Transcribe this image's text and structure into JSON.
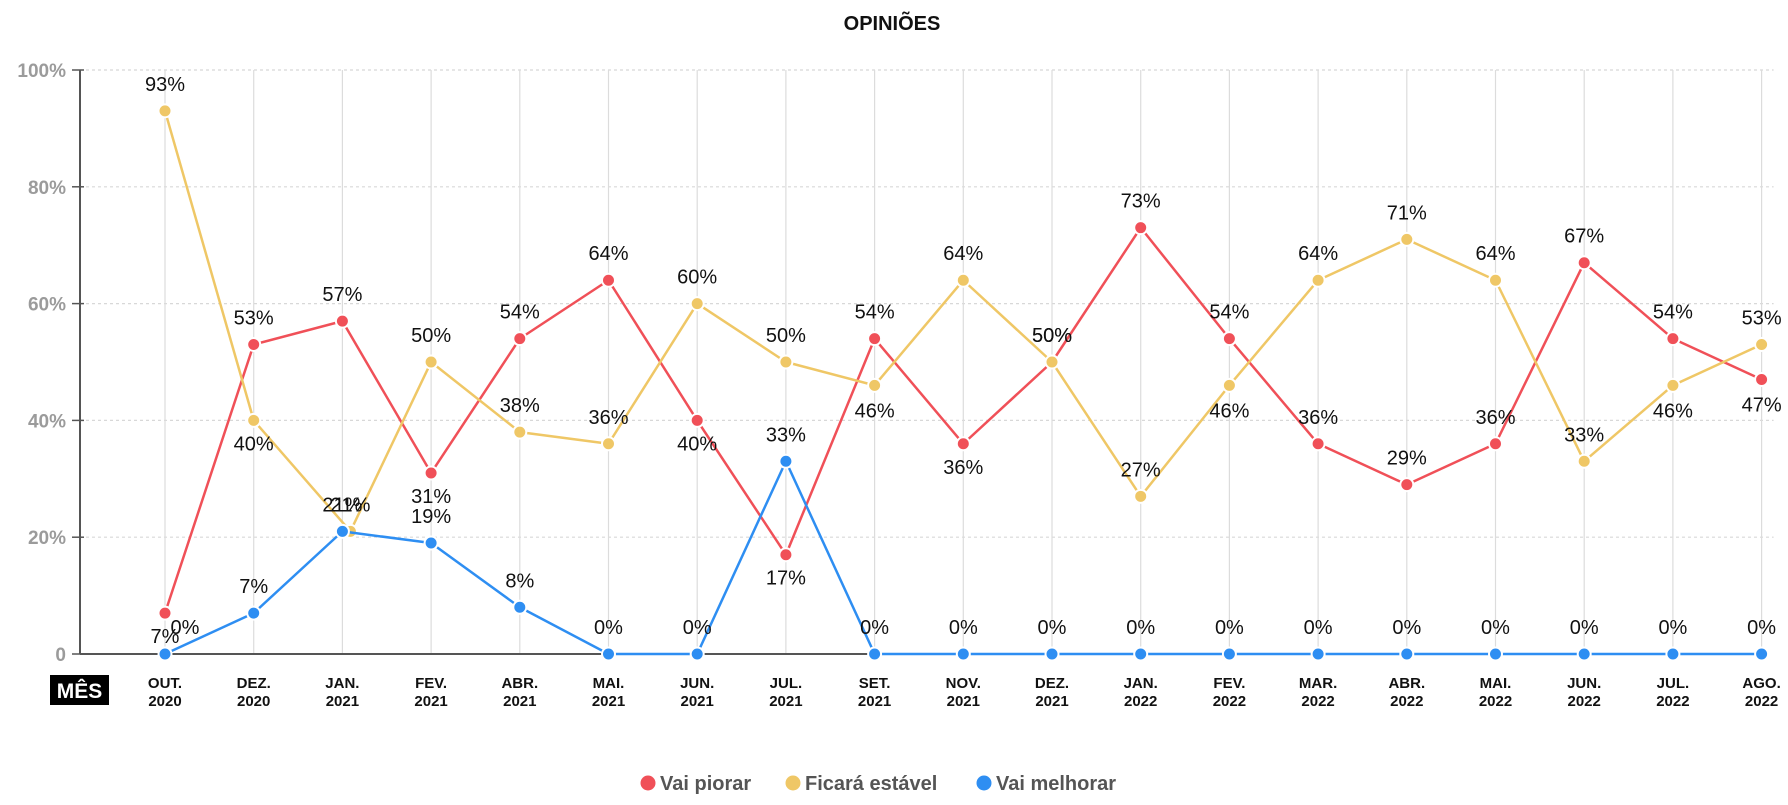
{
  "chart_data": {
    "type": "line",
    "title": "OPINIÕES",
    "xlabel": "MÊS",
    "ylabel": "",
    "ylim": [
      0,
      100
    ],
    "yticks": [
      {
        "value": 0,
        "label": "0"
      },
      {
        "value": 20,
        "label": "20%"
      },
      {
        "value": 40,
        "label": "40%"
      },
      {
        "value": 60,
        "label": "60%"
      },
      {
        "value": 80,
        "label": "80%"
      },
      {
        "value": 100,
        "label": "100%"
      }
    ],
    "categories": [
      {
        "month": "OUT.",
        "year": "2020"
      },
      {
        "month": "DEZ.",
        "year": "2020"
      },
      {
        "month": "JAN.",
        "year": "2021"
      },
      {
        "month": "FEV.",
        "year": "2021"
      },
      {
        "month": "ABR.",
        "year": "2021"
      },
      {
        "month": "MAI.",
        "year": "2021"
      },
      {
        "month": "JUN.",
        "year": "2021"
      },
      {
        "month": "JUL.",
        "year": "2021"
      },
      {
        "month": "SET.",
        "year": "2021"
      },
      {
        "month": "NOV.",
        "year": "2021"
      },
      {
        "month": "DEZ.",
        "year": "2021"
      },
      {
        "month": "JAN.",
        "year": "2022"
      },
      {
        "month": "FEV.",
        "year": "2022"
      },
      {
        "month": "MAR.",
        "year": "2022"
      },
      {
        "month": "ABR.",
        "year": "2022"
      },
      {
        "month": "MAI.",
        "year": "2022"
      },
      {
        "month": "JUN.",
        "year": "2022"
      },
      {
        "month": "JUL.",
        "year": "2022"
      },
      {
        "month": "AGO.",
        "year": "2022"
      }
    ],
    "grid": true,
    "legend_position": "bottom-center",
    "series": [
      {
        "name": "Vai piorar",
        "color": "#f05058",
        "values": [
          7,
          53,
          57,
          31,
          54,
          64,
          40,
          17,
          54,
          36,
          50,
          73,
          54,
          36,
          29,
          36,
          67,
          54,
          47
        ],
        "labels": [
          "7%",
          "53%",
          "57%",
          "31%",
          "54%",
          "64%",
          "40%",
          "17%",
          "54%",
          "36%",
          "50%",
          "73%",
          "54%",
          "36%",
          "29%",
          "36%",
          "67%",
          "54%",
          "47%"
        ]
      },
      {
        "name": "Ficará estável",
        "color": "#efc766",
        "values": [
          93,
          40,
          21,
          50,
          38,
          36,
          60,
          50,
          46,
          64,
          50,
          27,
          46,
          64,
          71,
          64,
          33,
          46,
          53
        ],
        "labels": [
          "93%",
          "40%",
          "21%",
          "50%",
          "38%",
          "36%",
          "60%",
          "50%",
          "46%",
          "64%",
          "50%",
          "27%",
          "46%",
          "64%",
          "71%",
          "64%",
          "33%",
          "46%",
          "53%"
        ]
      },
      {
        "name": "Vai melhorar",
        "color": "#2e8ef2",
        "values": [
          0,
          7,
          21,
          19,
          8,
          0,
          0,
          33,
          0,
          0,
          0,
          0,
          0,
          0,
          0,
          0,
          0,
          0,
          0
        ],
        "labels": [
          "0%",
          "7%",
          "21%",
          "19%",
          "8%",
          "0%",
          "0%",
          "33%",
          "0%",
          "0%",
          "0%",
          "0%",
          "0%",
          "0%",
          "0%",
          "0%",
          "0%",
          "0%",
          "0%"
        ]
      }
    ]
  }
}
